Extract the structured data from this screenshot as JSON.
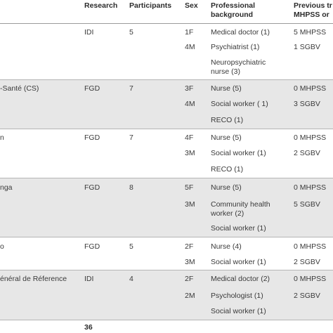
{
  "header": {
    "research": "Research",
    "participants": "Participants",
    "sex": "Sex",
    "background": "Professional background",
    "previous": "Previous tr MHPSS or"
  },
  "groups": [
    {
      "site": "",
      "research": "IDI",
      "participants": "5",
      "rows": [
        {
          "sex": "1F",
          "background": "Medical doctor (1)",
          "previous": "5 MHPSS"
        },
        {
          "sex": "4M",
          "background": "Psychiatrist (1)",
          "previous": "1 SGBV"
        },
        {
          "sex": "",
          "background": "Neuropsychiatric nurse (3)",
          "previous": ""
        }
      ]
    },
    {
      "site": "-Santé (CS)",
      "research": "FGD",
      "participants": "7",
      "rows": [
        {
          "sex": "3F",
          "background": "Nurse (5)",
          "previous": "0 MHPSS"
        },
        {
          "sex": "4M",
          "background": "Social worker ( 1)",
          "previous": "3 SGBV"
        },
        {
          "sex": "",
          "background": "RECO (1)",
          "previous": ""
        }
      ]
    },
    {
      "site": "n",
      "research": "FGD",
      "participants": "7",
      "rows": [
        {
          "sex": "4F",
          "background": "Nurse (5)",
          "previous": "0 MHPSS"
        },
        {
          "sex": "3M",
          "background": "Social worker (1)",
          "previous": "2 SGBV"
        },
        {
          "sex": "",
          "background": "RECO (1)",
          "previous": ""
        }
      ]
    },
    {
      "site": "nga",
      "research": "FGD",
      "participants": "8",
      "rows": [
        {
          "sex": "5F",
          "background": "Nurse (5)",
          "previous": "0 MHPSS"
        },
        {
          "sex": "3M",
          "background": "Community health worker (2)",
          "previous": "5 SGBV"
        },
        {
          "sex": "",
          "background": "Social worker (1)",
          "previous": ""
        }
      ]
    },
    {
      "site": "o",
      "research": "FGD",
      "participants": "5",
      "rows": [
        {
          "sex": "2F",
          "background": "Nurse (4)",
          "previous": "0 MHPSS"
        },
        {
          "sex": "3M",
          "background": "Social worker (1)",
          "previous": "2 SGBV"
        }
      ]
    },
    {
      "site": "énéral de Réference",
      "research": "IDI",
      "participants": "4",
      "rows": [
        {
          "sex": "2F",
          "background": "Medical doctor (2)",
          "previous": "0 MHPSS"
        },
        {
          "sex": "2M",
          "background": "Psychologist (1)",
          "previous": "2 SGBV"
        },
        {
          "sex": "",
          "background": "Social worker (1)",
          "previous": ""
        }
      ]
    }
  ],
  "total": {
    "participants": "36"
  }
}
